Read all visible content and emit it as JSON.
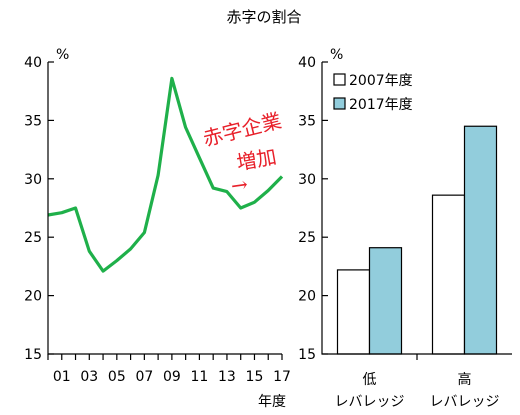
{
  "title": "赤字の割合",
  "chart_data": [
    {
      "type": "line",
      "unit_label": "%",
      "xlabel": "年度",
      "ylim": [
        15,
        40
      ],
      "y_ticks": [
        "15",
        "20",
        "25",
        "30",
        "35",
        "40"
      ],
      "x_tick_labels": [
        "01",
        "03",
        "05",
        "07",
        "09",
        "11",
        "13",
        "15",
        "17"
      ],
      "x": [
        2000,
        2001,
        2002,
        2003,
        2004,
        2005,
        2006,
        2007,
        2008,
        2009,
        2010,
        2011,
        2012,
        2013,
        2014,
        2015,
        2016,
        2017
      ],
      "series": [
        {
          "color": "#1fb04a",
          "values": [
            26.9,
            27.1,
            27.5,
            23.8,
            22.1,
            23.0,
            24.0,
            25.4,
            30.3,
            38.6,
            34.4,
            31.8,
            29.2,
            28.9,
            27.5,
            28.0,
            29.0,
            30.2
          ]
        }
      ],
      "annotation": {
        "lines": [
          "赤字企業",
          "増加"
        ],
        "arrow": "→",
        "color": "#e8202a"
      }
    },
    {
      "type": "bar",
      "unit_label": "%",
      "ylim": [
        15,
        40
      ],
      "y_ticks": [
        "15",
        "20",
        "25",
        "30",
        "35",
        "40"
      ],
      "categories": [
        {
          "line1": "低",
          "line2": "レバレッジ"
        },
        {
          "line1": "高",
          "line2": "レバレッジ"
        }
      ],
      "series": [
        {
          "name": "2007年度",
          "color": "#ffffff",
          "values": [
            22.2,
            28.6
          ]
        },
        {
          "name": "2017年度",
          "color": "#92cddc",
          "values": [
            24.1,
            34.5
          ]
        }
      ],
      "legend_position": "top-left"
    }
  ]
}
